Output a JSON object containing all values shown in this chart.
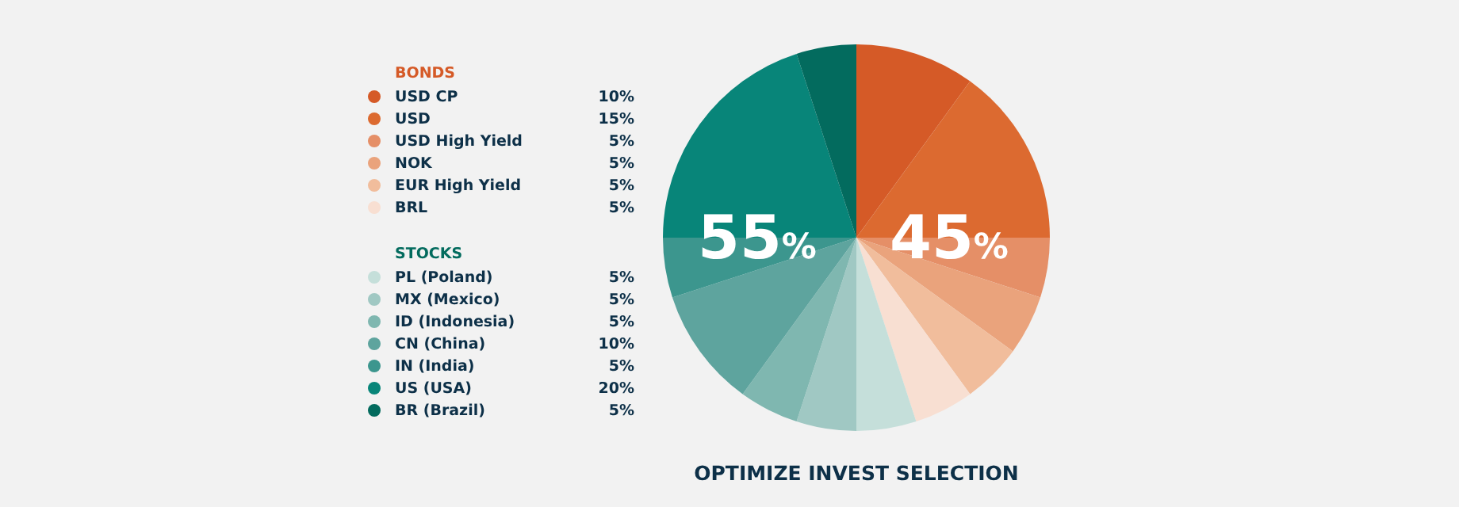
{
  "chart_data": {
    "type": "pie",
    "title": "OPTIMIZE INVEST SELECTION",
    "categories": [
      "USD CP",
      "USD",
      "USD High Yield",
      "NOK",
      "EUR High Yield",
      "BRL",
      "PL (Poland)",
      "MX (Mexico)",
      "ID (Indonesia)",
      "CN (China)",
      "IN (India)",
      "US (USA)",
      "BR (Brazil)"
    ],
    "values": [
      10,
      15,
      5,
      5,
      5,
      5,
      5,
      5,
      5,
      10,
      5,
      20,
      5
    ],
    "value_labels": [
      "10%",
      "15%",
      "5%",
      "5%",
      "5%",
      "5%",
      "5%",
      "5%",
      "5%",
      "10%",
      "5%",
      "20%",
      "5%"
    ],
    "colors": [
      "#d55a27",
      "#dc6a30",
      "#e58f67",
      "#eaa37c",
      "#f1bd9c",
      "#f8dfd2",
      "#c5dfda",
      "#a0c8c3",
      "#7fb7b0",
      "#5ea49e",
      "#3c968e",
      "#088579",
      "#036b5e"
    ],
    "annotations": [
      "BONDS",
      "STOCKS",
      "55%",
      "45%"
    ],
    "legend": "left"
  }
}
